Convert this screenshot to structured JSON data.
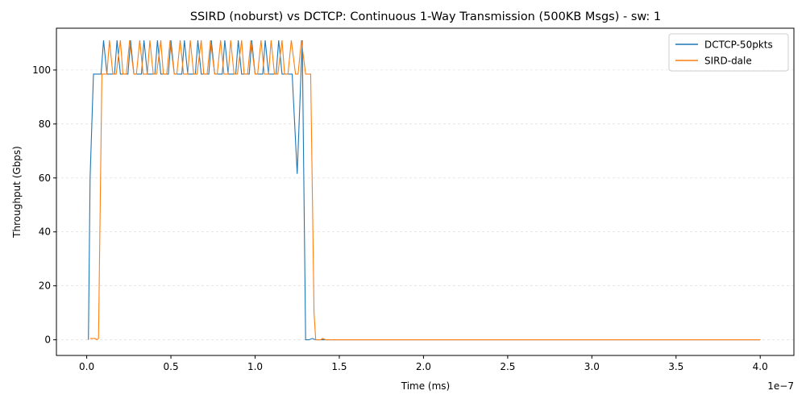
{
  "chart_data": {
    "type": "line",
    "title": "SSIRD (noburst) vs DCTCP: Continuous 1-Way Transmission (500KB Msgs) - sw: 1",
    "xlabel": "Time (ms)",
    "ylabel": "Throughput (Gbps)",
    "x_offset_text": "1e−7",
    "xlim": [
      -0.18,
      4.2
    ],
    "ylim": [
      -5.8,
      115.5
    ],
    "x_ticks": [
      0.0,
      0.5,
      1.0,
      1.5,
      2.0,
      2.5,
      3.0,
      3.5,
      4.0
    ],
    "x_tick_labels": [
      "0.0",
      "0.5",
      "1.0",
      "1.5",
      "2.0",
      "2.5",
      "3.0",
      "3.5",
      "4.0"
    ],
    "y_ticks": [
      0,
      20,
      40,
      60,
      80,
      100
    ],
    "y_tick_labels": [
      "0",
      "20",
      "40",
      "60",
      "80",
      "100"
    ],
    "grid": "y-dashed",
    "legend_position": "top-right",
    "series": [
      {
        "name": "DCTCP-50pkts",
        "color": "#1f77b4",
        "x": [
          0.01,
          0.02,
          0.04,
          0.06,
          0.085,
          0.1,
          0.12,
          0.14,
          0.165,
          0.18,
          0.2,
          0.22,
          0.245,
          0.26,
          0.28,
          0.3,
          0.325,
          0.34,
          0.36,
          0.38,
          0.405,
          0.42,
          0.44,
          0.46,
          0.485,
          0.5,
          0.52,
          0.54,
          0.565,
          0.58,
          0.6,
          0.62,
          0.645,
          0.66,
          0.68,
          0.7,
          0.725,
          0.74,
          0.76,
          0.78,
          0.805,
          0.82,
          0.84,
          0.86,
          0.885,
          0.9,
          0.92,
          0.94,
          0.965,
          0.98,
          1.0,
          1.02,
          1.045,
          1.06,
          1.08,
          1.1,
          1.125,
          1.14,
          1.16,
          1.2,
          1.22,
          1.25,
          1.28,
          1.3,
          1.32,
          1.34,
          1.36,
          1.4,
          4.0
        ],
        "y": [
          0,
          60,
          98.5,
          98.5,
          98.5,
          111,
          98.5,
          98.5,
          98.5,
          111,
          98.5,
          98.5,
          98.5,
          111,
          98.5,
          98.5,
          98.5,
          111,
          98.5,
          98.5,
          98.5,
          111,
          98.5,
          98.5,
          98.5,
          111,
          98.5,
          98.5,
          98.5,
          111,
          98.5,
          98.5,
          98.5,
          111,
          98.5,
          98.5,
          98.5,
          111,
          98.5,
          98.5,
          98.5,
          111,
          98.5,
          98.5,
          98.5,
          111,
          98.5,
          98.5,
          98.5,
          111,
          98.5,
          98.5,
          98.5,
          111,
          98.5,
          98.5,
          98.5,
          111,
          98.5,
          98.5,
          98.5,
          61.5,
          111,
          0,
          0,
          0.5,
          0,
          0,
          0
        ]
      },
      {
        "name": "SIRD-dale",
        "color": "#ff7f0e",
        "x": [
          0.02,
          0.04,
          0.05,
          0.06,
          0.07,
          0.09,
          0.1,
          0.12,
          0.135,
          0.155,
          0.175,
          0.2,
          0.215,
          0.235,
          0.255,
          0.28,
          0.295,
          0.315,
          0.335,
          0.36,
          0.375,
          0.395,
          0.415,
          0.44,
          0.455,
          0.475,
          0.495,
          0.52,
          0.535,
          0.555,
          0.575,
          0.6,
          0.615,
          0.635,
          0.655,
          0.68,
          0.695,
          0.715,
          0.735,
          0.76,
          0.775,
          0.795,
          0.815,
          0.84,
          0.855,
          0.875,
          0.895,
          0.92,
          0.935,
          0.955,
          0.975,
          1.0,
          1.015,
          1.035,
          1.055,
          1.08,
          1.095,
          1.115,
          1.135,
          1.16,
          1.175,
          1.195,
          1.215,
          1.24,
          1.255,
          1.275,
          1.3,
          1.33,
          1.35,
          1.36,
          1.38,
          1.39,
          1.4,
          1.42,
          4.0
        ],
        "y": [
          0.5,
          0.5,
          0.5,
          0,
          0.5,
          98.5,
          98.5,
          98.5,
          111,
          98.5,
          98.5,
          111,
          98.5,
          98.5,
          111,
          98.5,
          98.5,
          111,
          98.5,
          98.5,
          111,
          98.5,
          98.5,
          111,
          98.5,
          98.5,
          111,
          98.5,
          98.5,
          111,
          98.5,
          98.5,
          111,
          98.5,
          98.5,
          111,
          98.5,
          98.5,
          111,
          98.5,
          98.5,
          111,
          98.5,
          98.5,
          111,
          98.5,
          98.5,
          111,
          98.5,
          98.5,
          111,
          98.5,
          98.5,
          111,
          98.5,
          98.5,
          111,
          98.5,
          98.5,
          111,
          98.5,
          98.5,
          111,
          98.5,
          98.5,
          111,
          98.5,
          98.5,
          10,
          0,
          0,
          0,
          0.5,
          0,
          0
        ]
      }
    ]
  }
}
